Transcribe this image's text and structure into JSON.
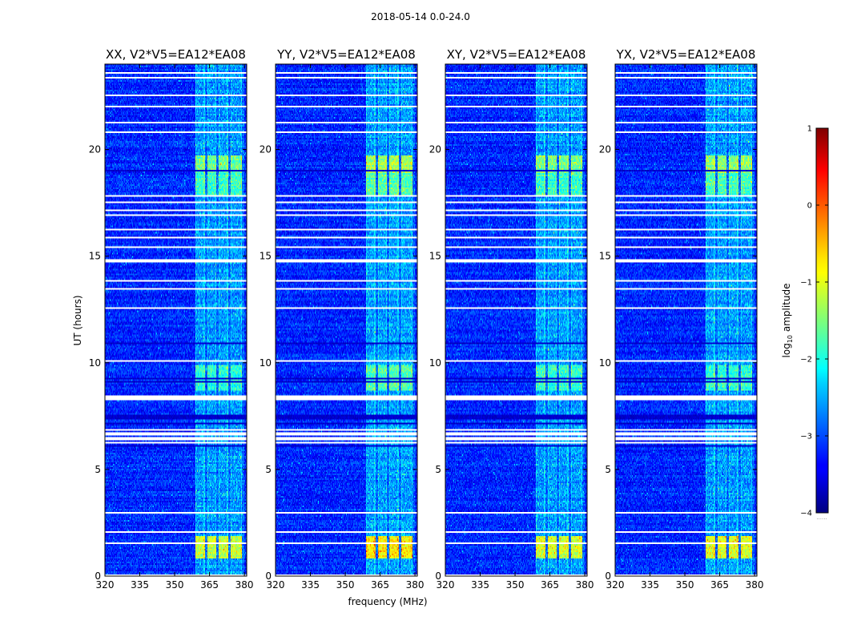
{
  "chart_data": {
    "type": "heatmap",
    "suptitle": "2018-05-14 0.0-24.0",
    "panels": [
      {
        "title": "XX, V2*V5=EA12*EA08",
        "burst_strength": 0.8
      },
      {
        "title": "YY, V2*V5=EA12*EA08",
        "burst_strength": 1.0
      },
      {
        "title": "XY, V2*V5=EA12*EA08",
        "burst_strength": 0.85
      },
      {
        "title": "YX, V2*V5=EA12*EA08",
        "burst_strength": 0.9
      }
    ],
    "xlabel": "frequency (MHz)",
    "ylabel": "UT (hours)",
    "xlim": [
      320,
      381
    ],
    "ylim": [
      0,
      24
    ],
    "xticks": [
      320,
      335,
      350,
      365,
      380
    ],
    "yticks": [
      0,
      5,
      10,
      15,
      20
    ],
    "colorbar": {
      "label": "log10 amplitude",
      "label_base": "log",
      "label_sub": "10",
      "label_rest": " amplitude",
      "range": [
        -4,
        1
      ],
      "ticks": [
        "1",
        "0",
        "−1",
        "−2",
        "−3",
        "−4"
      ],
      "tick_values": [
        1,
        0,
        -1,
        -2,
        -3,
        -4
      ],
      "extra_label": "......"
    },
    "rfi_band_mhz": [
      359,
      380
    ],
    "rfi_subbands_mhz": [
      [
        359,
        363
      ],
      [
        364,
        368
      ],
      [
        369,
        373
      ],
      [
        374,
        379
      ]
    ],
    "flagged_hours": [
      [
        0.02,
        0.08
      ],
      [
        1.52,
        1.56
      ],
      [
        1.78,
        1.83
      ],
      [
        2.03,
        2.07
      ],
      [
        2.76,
        2.81
      ],
      [
        2.93,
        2.97
      ],
      [
        4.32,
        4.36
      ],
      [
        6.22,
        6.28
      ],
      [
        6.4,
        6.52
      ],
      [
        6.58,
        6.72
      ],
      [
        6.82,
        6.89
      ],
      [
        7.02,
        7.08
      ],
      [
        7.92,
        7.98
      ],
      [
        8.28,
        8.48
      ],
      [
        10.06,
        10.12
      ],
      [
        11.52,
        11.57
      ],
      [
        12.52,
        12.57
      ],
      [
        12.8,
        12.86
      ],
      [
        13.45,
        13.5
      ],
      [
        13.78,
        13.84
      ],
      [
        14.38,
        14.43
      ],
      [
        14.72,
        14.82
      ],
      [
        15.13,
        15.18
      ],
      [
        15.38,
        15.44
      ],
      [
        15.82,
        15.88
      ],
      [
        16.18,
        16.24
      ],
      [
        16.88,
        16.93
      ],
      [
        17.12,
        17.18
      ],
      [
        17.48,
        17.52
      ],
      [
        17.74,
        17.85
      ],
      [
        19.48,
        19.52
      ],
      [
        20.78,
        20.84
      ],
      [
        21.22,
        21.3
      ],
      [
        21.52,
        21.56
      ],
      [
        21.98,
        22.05
      ],
      [
        22.48,
        22.55
      ],
      [
        23.35,
        23.42
      ],
      [
        23.52,
        23.62
      ]
    ],
    "dark_hours": [
      [
        0.58,
        0.62
      ],
      [
        0.96,
        1.0
      ],
      [
        6.04,
        6.16
      ],
      [
        7.12,
        7.18
      ],
      [
        7.38,
        7.56
      ],
      [
        7.62,
        7.68
      ],
      [
        8.82,
        8.86
      ],
      [
        9.08,
        9.12
      ],
      [
        9.24,
        9.27
      ],
      [
        9.42,
        9.45
      ],
      [
        9.58,
        9.62
      ],
      [
        10.72,
        10.76
      ],
      [
        10.9,
        10.93
      ],
      [
        12.28,
        12.32
      ],
      [
        18.98,
        19.02
      ]
    ],
    "bright_hours": [
      [
        0.85,
        1.85,
        2.2
      ],
      [
        8.7,
        9.9,
        1.0
      ],
      [
        17.8,
        19.3,
        1.1
      ],
      [
        18.9,
        19.7,
        1.6
      ]
    ]
  }
}
